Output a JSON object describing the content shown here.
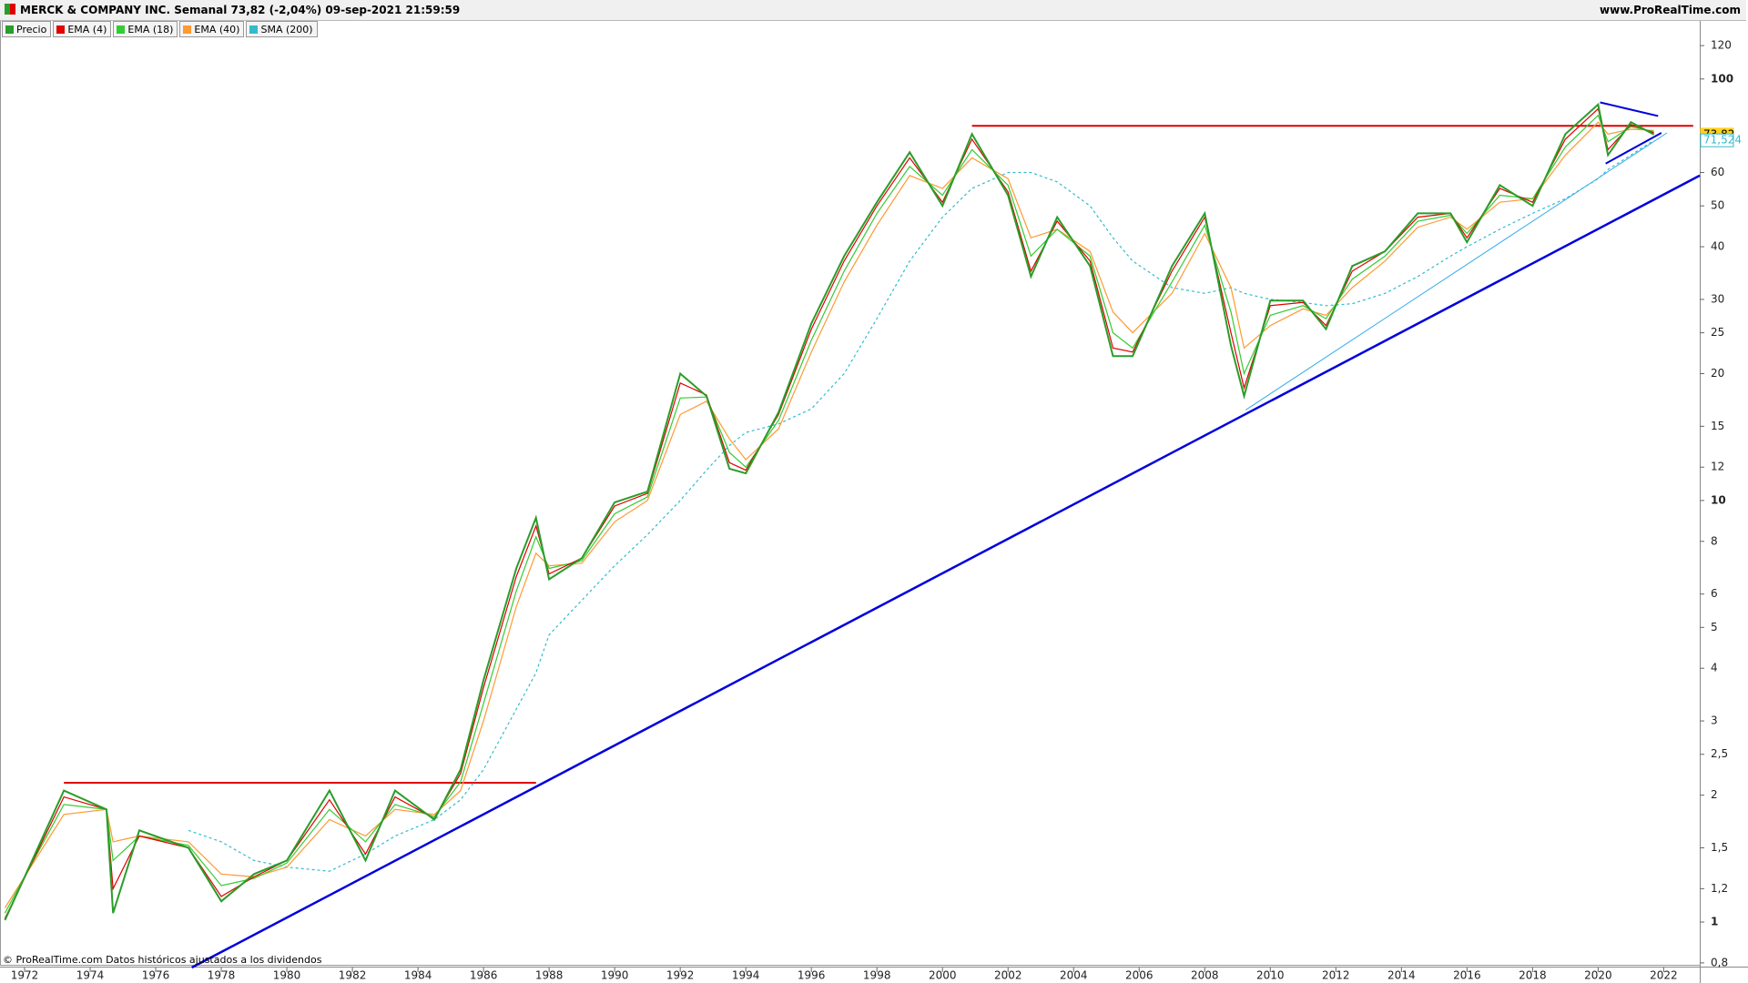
{
  "chart_data": {
    "type": "line",
    "log_y": true,
    "title": "MERCK & COMPANY INC. Semanal 73,82 (-2,04%) 09-sep-2021 21:59:59",
    "site": "www.ProRealTime.com",
    "footnote": "© ProRealTime.com Datos históricos ajustados a los dividendos",
    "x": [
      1971.4,
      1973.2,
      1974.5,
      1974.7,
      1975.5,
      1977,
      1978,
      1979,
      1980,
      1981.3,
      1982.4,
      1983.3,
      1984.5,
      1985.3,
      1986,
      1987,
      1987.6,
      1988,
      1989,
      1990,
      1991,
      1992,
      1992.8,
      1993.5,
      1994,
      1995,
      1996,
      1997,
      1998,
      1999,
      2000,
      2000.9,
      2002,
      2002.7,
      2003.5,
      2004.5,
      2005.2,
      2005.8,
      2007,
      2008,
      2008.8,
      2009.2,
      2010,
      2011,
      2011.7,
      2012.5,
      2013.5,
      2014.5,
      2015.5,
      2016,
      2017,
      2018,
      2019,
      2020,
      2020.3,
      2021,
      2021.7
    ],
    "series": [
      {
        "name": "Precio",
        "color": "#2a9d2a",
        "style": "solid",
        "values": [
          1.01,
          2.05,
          1.85,
          1.05,
          1.65,
          1.5,
          1.12,
          1.3,
          1.4,
          2.05,
          1.4,
          2.05,
          1.75,
          2.3,
          3.75,
          6.9,
          9.1,
          6.5,
          7.3,
          9.9,
          10.5,
          20,
          17.7,
          11.9,
          11.6,
          16.2,
          26.3,
          38,
          51,
          67,
          50,
          74,
          53,
          34,
          47,
          36,
          22,
          22,
          36,
          48,
          23.3,
          17.7,
          29.8,
          29.8,
          25.5,
          36,
          39,
          48,
          48,
          41,
          56,
          50,
          74,
          87,
          66,
          79,
          73.82
        ]
      },
      {
        "name": "EMA (4)",
        "color": "#e00000",
        "style": "solid",
        "values": [
          1.02,
          1.98,
          1.85,
          1.2,
          1.6,
          1.5,
          1.15,
          1.28,
          1.4,
          1.95,
          1.45,
          1.98,
          1.76,
          2.25,
          3.6,
          6.6,
          8.7,
          6.7,
          7.3,
          9.7,
          10.4,
          19,
          17.8,
          12.3,
          11.8,
          16,
          25.5,
          37,
          50,
          65,
          51,
          72,
          54,
          35,
          46,
          37,
          23,
          22.5,
          35,
          47,
          25,
          18.5,
          29,
          29.5,
          26,
          35,
          39,
          47,
          48,
          42,
          55,
          51,
          72,
          85,
          68,
          78,
          74.5
        ]
      },
      {
        "name": "EMA (18)",
        "color": "#33cc33",
        "style": "solid",
        "values": [
          1.05,
          1.9,
          1.85,
          1.4,
          1.6,
          1.52,
          1.22,
          1.27,
          1.38,
          1.85,
          1.55,
          1.9,
          1.78,
          2.15,
          3.3,
          6.1,
          8.2,
          6.9,
          7.2,
          9.3,
          10.2,
          17.5,
          17.6,
          13,
          12,
          15.5,
          24,
          35,
          48,
          62,
          53,
          68,
          56,
          38,
          44,
          38,
          25,
          23,
          33,
          45,
          28,
          20,
          27.5,
          29,
          27,
          33.5,
          38,
          46,
          47.5,
          43,
          53,
          52,
          69,
          82,
          71,
          77,
          75
        ]
      },
      {
        "name": "EMA (40)",
        "color": "#ff9933",
        "style": "solid",
        "values": [
          1.08,
          1.8,
          1.85,
          1.55,
          1.6,
          1.55,
          1.3,
          1.28,
          1.35,
          1.75,
          1.6,
          1.85,
          1.8,
          2.05,
          3,
          5.6,
          7.5,
          7,
          7.1,
          8.9,
          10,
          16,
          17.2,
          14,
          12.5,
          14.8,
          22.5,
          33,
          45,
          59,
          55,
          65,
          58,
          42,
          44,
          39,
          28,
          25,
          31,
          43,
          32,
          23,
          26,
          28.5,
          27.5,
          32,
          37,
          44.5,
          47,
          44,
          51,
          52,
          66,
          79,
          74,
          76,
          75.5
        ]
      },
      {
        "name": "SMA (200)",
        "color": "#33bbcc",
        "style": "dashed",
        "values": [
          null,
          null,
          null,
          null,
          null,
          1.65,
          1.55,
          1.4,
          1.35,
          1.32,
          1.45,
          1.6,
          1.75,
          1.95,
          2.3,
          3.2,
          3.9,
          4.8,
          5.8,
          7,
          8.3,
          10,
          11.8,
          13.5,
          14.5,
          15.2,
          16.5,
          20,
          27,
          37,
          47,
          55,
          60,
          60,
          57,
          50,
          42,
          37,
          32,
          31,
          32,
          31,
          30,
          29.5,
          29,
          29.3,
          31,
          34,
          38,
          40,
          44,
          48,
          52,
          58,
          61,
          66,
          71.524
        ]
      }
    ],
    "trendlines": [
      {
        "color": "#e00000",
        "width": 2,
        "x": [
          1973.2,
          1987.6
        ],
        "y": [
          2.14,
          2.14
        ]
      },
      {
        "color": "#e00000",
        "width": 2,
        "x": [
          2000.9,
          2022.9
        ],
        "y": [
          77.4,
          77.4
        ]
      },
      {
        "color": "#0000dd",
        "width": 2.5,
        "x": [
          1977.1,
          2023.1
        ],
        "y": [
          0.78,
          59
        ]
      },
      {
        "color": "#33aaee",
        "width": 1,
        "x": [
          2009.25,
          2022.1
        ],
        "y": [
          16.4,
          74.5
        ]
      },
      {
        "color": "#0000dd",
        "width": 2,
        "x": [
          2020.06,
          2021.83
        ],
        "y": [
          88,
          81.7
        ]
      },
      {
        "color": "#0000dd",
        "width": 2,
        "x": [
          2020.23,
          2021.93
        ],
        "y": [
          63,
          74.5
        ]
      }
    ],
    "price_labels": [
      {
        "value": 73.82,
        "label": "73,82",
        "color": "#ffd21f"
      },
      {
        "value": 71.524,
        "label": "71,524",
        "color": "#33bbcc"
      }
    ],
    "xlim": [
      1971.25,
      2023.1
    ],
    "ylim": [
      0.78,
      138
    ],
    "xticks": [
      1972,
      1974,
      1976,
      1978,
      1980,
      1982,
      1984,
      1986,
      1988,
      1990,
      1992,
      1994,
      1996,
      1998,
      2000,
      2002,
      2004,
      2006,
      2008,
      2010,
      2012,
      2014,
      2016,
      2018,
      2020,
      2022
    ],
    "yticks": [
      {
        "value": 0.8,
        "label": "0,8"
      },
      1,
      {
        "value": 1.2,
        "label": "1,2"
      },
      {
        "value": 1.5,
        "label": "1,5"
      },
      2,
      {
        "value": 2.5,
        "label": "2,5"
      },
      3,
      4,
      5,
      6,
      8,
      10,
      12,
      15,
      20,
      25,
      30,
      40,
      50,
      60,
      100,
      120
    ]
  }
}
